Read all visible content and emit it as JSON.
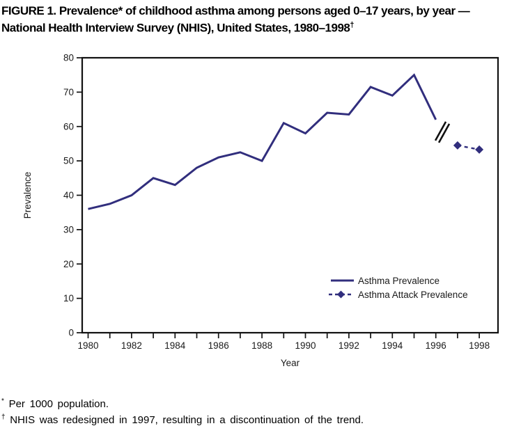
{
  "figure": {
    "title_line1": "FIGURE 1. Prevalence* of childhood asthma among persons aged 0–17 years, by year —",
    "title_line2": "National Health Interview Survey (NHIS), United States, 1980–1998",
    "title_dagger": "†"
  },
  "chart_data": {
    "type": "line",
    "title": "Prevalence of childhood asthma among persons aged 0-17 years, by year, NHIS, United States, 1980-1998",
    "xlabel": "Year",
    "ylabel": "Prevalence",
    "xlim": [
      1980,
      1999
    ],
    "ylim": [
      0,
      80
    ],
    "grid": false,
    "legend_position": "inside lower right",
    "axis_color": "#111111",
    "line_color": "#312e7d",
    "y_ticks": [
      0,
      10,
      20,
      30,
      40,
      50,
      60,
      70,
      80
    ],
    "x_minor_tick_years": [
      1980,
      1981,
      1982,
      1983,
      1984,
      1985,
      1986,
      1987,
      1988,
      1989,
      1990,
      1991,
      1992,
      1993,
      1994,
      1995,
      1996,
      1997,
      1998
    ],
    "x_tick_label_years": [
      1980,
      1982,
      1984,
      1986,
      1988,
      1990,
      1992,
      1994,
      1996,
      1998
    ],
    "series": [
      {
        "name": "Asthma Prevalence",
        "style": "solid",
        "x": [
          1980,
          1981,
          1982,
          1983,
          1984,
          1985,
          1986,
          1987,
          1988,
          1989,
          1990,
          1991,
          1992,
          1993,
          1994,
          1995,
          1996
        ],
        "values": [
          36,
          37.5,
          40,
          45,
          43,
          48,
          51,
          52.5,
          50,
          61,
          58,
          64,
          63.5,
          71.5,
          69,
          75,
          62
        ]
      },
      {
        "name": "Asthma Attack Prevalence",
        "style": "dashed",
        "marker": "diamond",
        "x": [
          1997,
          1998
        ],
        "values": [
          54.5,
          53.3
        ]
      }
    ],
    "annotations": [
      {
        "type": "axis-break-slashes",
        "between_years": [
          1996,
          1997
        ],
        "note": "discontinuation of the trend"
      }
    ]
  },
  "footnotes": [
    {
      "marker": "*",
      "text": "Per 1000 population."
    },
    {
      "marker": "†",
      "text": "NHIS was redesigned in 1997, resulting in a discontinuation of the trend."
    }
  ]
}
